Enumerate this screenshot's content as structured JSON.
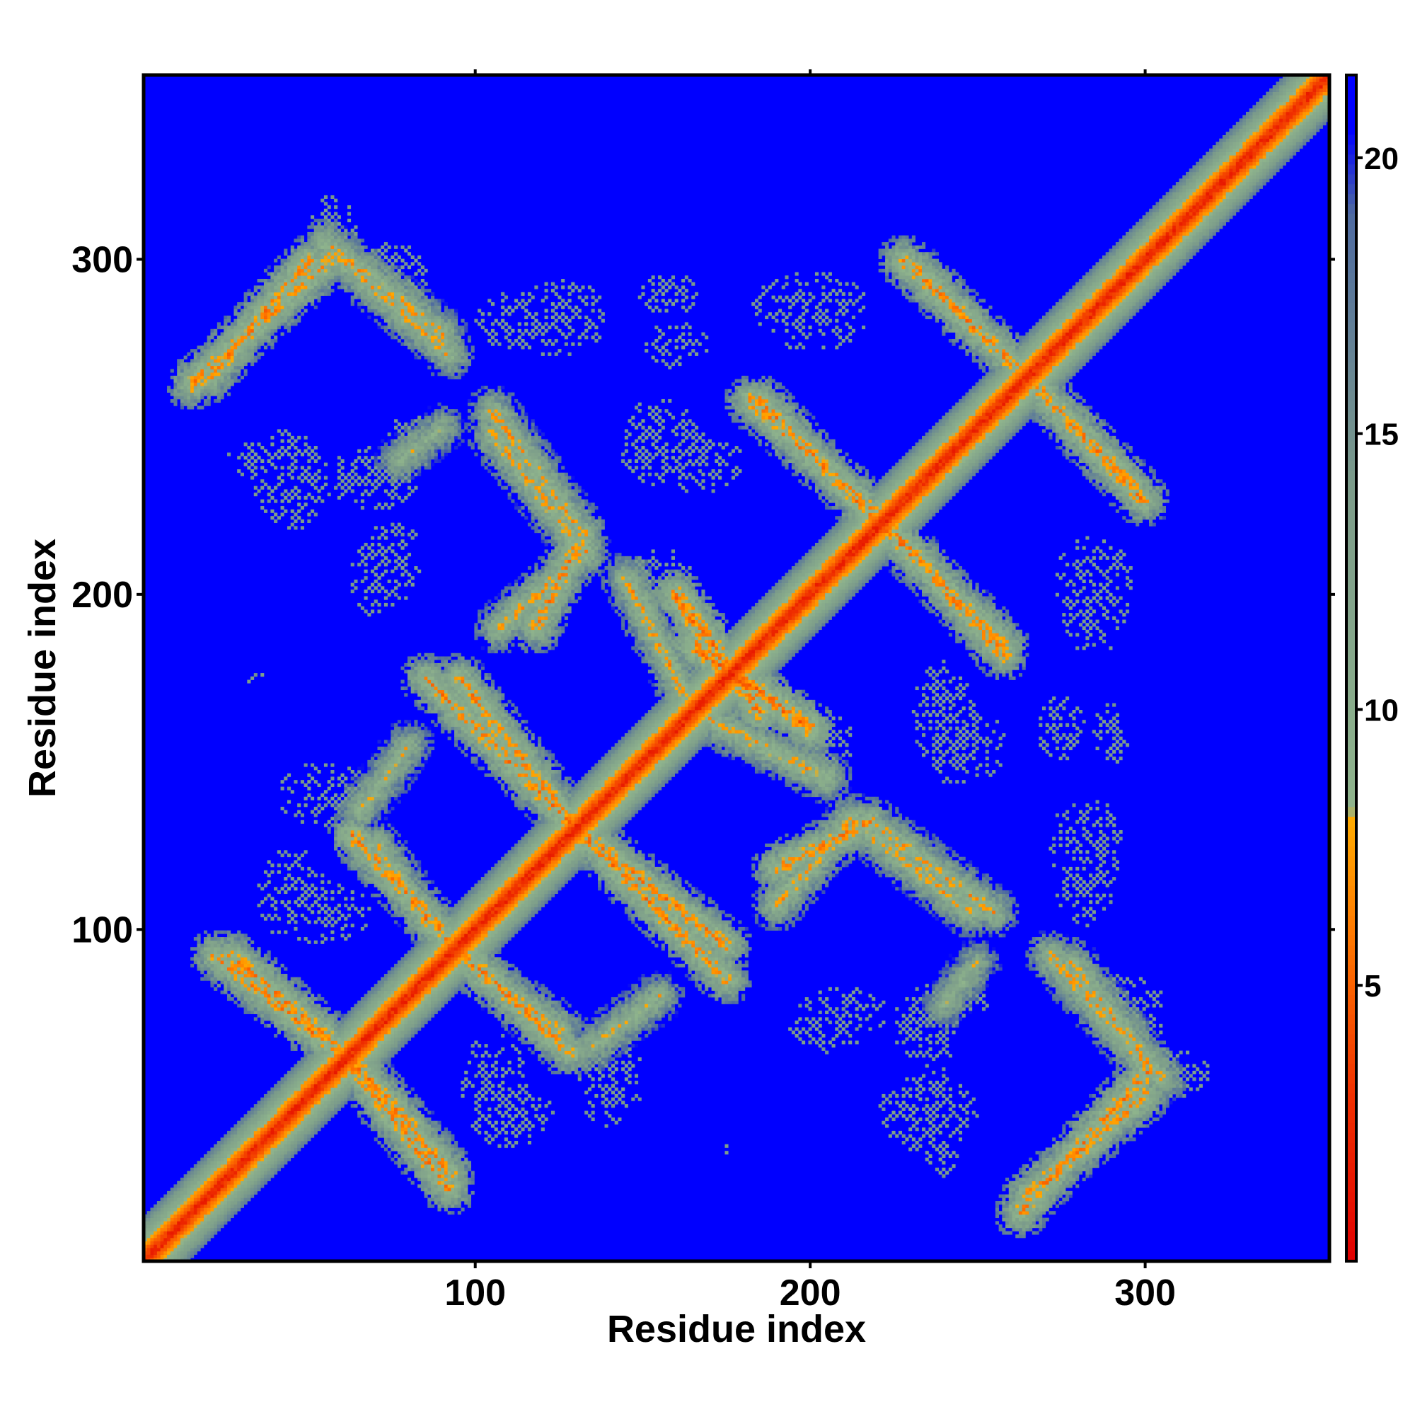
{
  "chart_data": {
    "type": "heatmap",
    "title": "",
    "xlabel": "Residue index",
    "ylabel": "Residue index",
    "n_residues": 355,
    "xlim": [
      1,
      355
    ],
    "ylim": [
      1,
      355
    ],
    "x_ticks": [
      100,
      200,
      300
    ],
    "y_ticks": [
      100,
      200,
      300
    ],
    "colorbar": {
      "range": [
        0,
        21.5
      ],
      "ticks": [
        5,
        10,
        15,
        20
      ],
      "stops": [
        {
          "value": 0,
          "color": "#e00000"
        },
        {
          "value": 3,
          "color": "#f03000"
        },
        {
          "value": 6,
          "color": "#ff7a00"
        },
        {
          "value": 8,
          "color": "#ffaa00"
        },
        {
          "value": 8.2,
          "color": "#8fb48c"
        },
        {
          "value": 14,
          "color": "#7c9c8a"
        },
        {
          "value": 19,
          "color": "#4e6aa0"
        },
        {
          "value": 20.5,
          "color": "#0000ff"
        },
        {
          "value": 21.5,
          "color": "#0000ff"
        }
      ]
    },
    "background_value": 21,
    "background_color": "#0000ff",
    "grid": false,
    "contact_bands": [
      {
        "from": [
          15,
          263
        ],
        "to": [
          58,
          302
        ],
        "peak": 7
      },
      {
        "from": [
          58,
          302
        ],
        "to": [
          92,
          272
        ],
        "peak": 8
      },
      {
        "from": [
          22,
          92
        ],
        "to": [
          65,
          58
        ],
        "peak": 7
      },
      {
        "from": [
          62,
          62
        ],
        "to": [
          92,
          27
        ],
        "peak": 7
      },
      {
        "from": [
          63,
          128
        ],
        "to": [
          103,
          85
        ],
        "peak": 7
      },
      {
        "from": [
          103,
          85
        ],
        "to": [
          125,
          70
        ],
        "peak": 8
      },
      {
        "from": [
          105,
          248
        ],
        "to": [
          133,
          212
        ],
        "peak": 8
      },
      {
        "from": [
          107,
          190
        ],
        "to": [
          133,
          213
        ],
        "peak": 8
      },
      {
        "from": [
          85,
          175
        ],
        "to": [
          130,
          130
        ],
        "peak": 7
      },
      {
        "from": [
          130,
          130
        ],
        "to": [
          175,
          95
        ],
        "peak": 7
      },
      {
        "from": [
          185,
          258
        ],
        "to": [
          220,
          222
        ],
        "peak": 7
      },
      {
        "from": [
          222,
          222
        ],
        "to": [
          258,
          182
        ],
        "peak": 7
      },
      {
        "from": [
          232,
          297
        ],
        "to": [
          268,
          262
        ],
        "peak": 7
      },
      {
        "from": [
          268,
          262
        ],
        "to": [
          300,
          228
        ],
        "peak": 7
      },
      {
        "from": [
          190,
          118
        ],
        "to": [
          218,
          132
        ],
        "peak": 7
      },
      {
        "from": [
          218,
          132
        ],
        "to": [
          255,
          105
        ],
        "peak": 8
      },
      {
        "from": [
          160,
          200
        ],
        "to": [
          185,
          165
        ],
        "peak": 6
      },
      {
        "from": [
          165,
          165
        ],
        "to": [
          205,
          145
        ],
        "peak": 8
      },
      {
        "from": [
          265,
          20
        ],
        "to": [
          300,
          50
        ],
        "peak": 7
      },
      {
        "from": [
          278,
          90
        ],
        "to": [
          305,
          55
        ],
        "peak": 8
      },
      {
        "from": [
          135,
          65
        ],
        "to": [
          155,
          80
        ],
        "peak": 9
      },
      {
        "from": [
          240,
          77
        ],
        "to": [
          250,
          90
        ],
        "peak": 10
      }
    ],
    "sparse_patches": [
      {
        "x": 115,
        "y": 282,
        "rx": 16,
        "ry": 9
      },
      {
        "x": 70,
        "y": 235,
        "rx": 14,
        "ry": 10
      },
      {
        "x": 35,
        "y": 240,
        "rx": 10,
        "ry": 6
      },
      {
        "x": 70,
        "y": 205,
        "rx": 8,
        "ry": 12
      },
      {
        "x": 55,
        "y": 140,
        "rx": 15,
        "ry": 10
      },
      {
        "x": 55,
        "y": 105,
        "rx": 14,
        "ry": 10
      },
      {
        "x": 110,
        "y": 45,
        "rx": 14,
        "ry": 11
      },
      {
        "x": 200,
        "y": 285,
        "rx": 18,
        "ry": 12
      },
      {
        "x": 160,
        "y": 275,
        "rx": 10,
        "ry": 8
      },
      {
        "x": 165,
        "y": 240,
        "rx": 16,
        "ry": 10
      },
      {
        "x": 155,
        "y": 205,
        "rx": 10,
        "ry": 9
      },
      {
        "x": 285,
        "y": 205,
        "rx": 12,
        "ry": 12
      },
      {
        "x": 245,
        "y": 155,
        "rx": 14,
        "ry": 12
      },
      {
        "x": 283,
        "y": 125,
        "rx": 12,
        "ry": 14
      },
      {
        "x": 210,
        "y": 75,
        "rx": 14,
        "ry": 9
      },
      {
        "x": 235,
        "y": 45,
        "rx": 16,
        "ry": 12
      },
      {
        "x": 245,
        "y": 80,
        "rx": 9,
        "ry": 7
      },
      {
        "x": 295,
        "y": 75,
        "rx": 12,
        "ry": 12
      },
      {
        "x": 310,
        "y": 57,
        "rx": 10,
        "ry": 8
      },
      {
        "x": 35,
        "y": 175,
        "rx": 4,
        "ry": 2
      },
      {
        "x": 175,
        "y": 35,
        "rx": 2,
        "ry": 4
      },
      {
        "x": 290,
        "y": 158,
        "rx": 6,
        "ry": 10
      }
    ]
  }
}
